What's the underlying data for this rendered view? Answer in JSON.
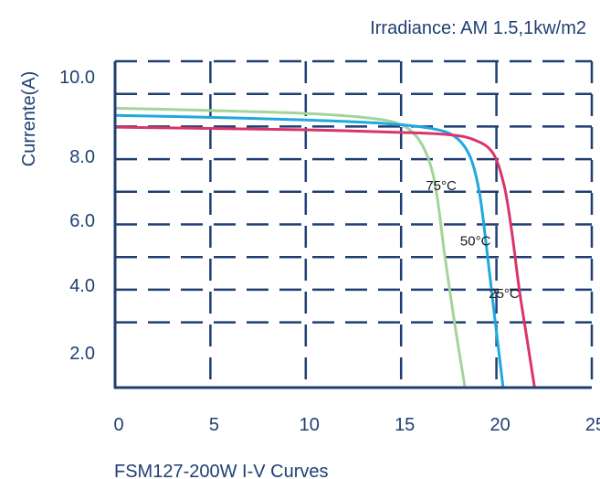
{
  "chart_data": {
    "type": "line",
    "title": "",
    "annotation": "Irradiance: AM 1.5,1kw/m2",
    "caption": "FSM127-200W I-V Curves",
    "xlabel": "",
    "ylabel": "Currente(A)",
    "xlim": [
      0,
      25
    ],
    "ylim": [
      1.0,
      11.0
    ],
    "x_ticks": [
      "0",
      "5",
      "10",
      "15",
      "20",
      "25"
    ],
    "y_ticks": [
      {
        "label": "2.0",
        "value": 2.0
      },
      {
        "label": "4.0",
        "value": 4.0
      },
      {
        "label": "6.0",
        "value": 6.0
      },
      {
        "label": "8.0",
        "value": 8.0
      },
      {
        "label": "10.0",
        "value": 10.0
      }
    ],
    "grid": true,
    "colors": {
      "axis": "#1f3f73",
      "grid": "#1f3f73",
      "text": "#1f3f73"
    },
    "series": [
      {
        "name": "75°C",
        "color": "#a3d49a",
        "points": [
          [
            0,
            9.56
          ],
          [
            5,
            9.49
          ],
          [
            10,
            9.4
          ],
          [
            13,
            9.28
          ],
          [
            14.8,
            9.1
          ],
          [
            15.8,
            8.7
          ],
          [
            16.5,
            7.9
          ],
          [
            16.9,
            6.8
          ],
          [
            17.3,
            5.0
          ],
          [
            17.8,
            3.0
          ],
          [
            18.35,
            1.0
          ]
        ]
      },
      {
        "name": "50°C",
        "color": "#1ea8e0",
        "points": [
          [
            0,
            9.34
          ],
          [
            5,
            9.28
          ],
          [
            10,
            9.2
          ],
          [
            14,
            9.1
          ],
          [
            16.5,
            8.95
          ],
          [
            17.8,
            8.7
          ],
          [
            18.6,
            8.1
          ],
          [
            19.1,
            7.0
          ],
          [
            19.5,
            5.2
          ],
          [
            19.9,
            3.2
          ],
          [
            20.35,
            1.0
          ]
        ]
      },
      {
        "name": "25°C",
        "color": "#d9356a",
        "points": [
          [
            0,
            8.98
          ],
          [
            5,
            8.94
          ],
          [
            10,
            8.9
          ],
          [
            15,
            8.82
          ],
          [
            17.5,
            8.75
          ],
          [
            18.8,
            8.6
          ],
          [
            19.8,
            8.2
          ],
          [
            20.4,
            7.2
          ],
          [
            20.8,
            5.8
          ],
          [
            21.2,
            4.0
          ],
          [
            21.6,
            2.5
          ],
          [
            22.0,
            1.0
          ]
        ]
      }
    ]
  }
}
